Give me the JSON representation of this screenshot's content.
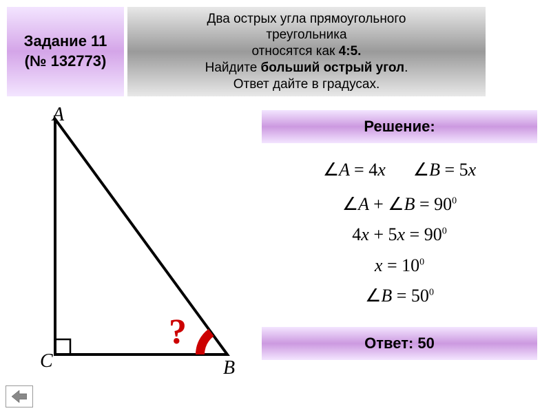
{
  "task_header": {
    "line1": "Задание 11",
    "line2": "(№ 132773)"
  },
  "problem": {
    "line1": "Два острых угла прямоугольного",
    "line2": "треугольника",
    "line3_before": "относятся как ",
    "line3_bold": "4:5.",
    "line4_before": "Найдите ",
    "line4_bold": "больший острый угол",
    "line4_after": ".",
    "line5": "Ответ дайте в градусах."
  },
  "solution_label": "Решение:",
  "equations": {
    "eq1a": "∠A = 4x",
    "eq1b": "∠B = 5x",
    "eq2": "∠A + ∠B = 90",
    "eq3": "4x + 5x = 90",
    "eq4": "x = 10",
    "eq5": "∠B = 50",
    "deg": "0"
  },
  "answer_label": "Ответ: 50",
  "triangle": {
    "vertices": {
      "A": "A",
      "B": "B",
      "C": "C"
    },
    "question": "?",
    "stroke": "#000000",
    "stroke_width": 4,
    "right_angle_size": 22,
    "arc_color": "#cc0000",
    "points": {
      "A": [
        60,
        18
      ],
      "C": [
        60,
        360
      ],
      "B": [
        310,
        360
      ]
    }
  },
  "colors": {
    "purple_grad_light": "#f3e5ff",
    "purple_grad_mid": "#d4a5e8",
    "gray_grad_light": "#e8e8e8",
    "gray_grad_mid": "#9a9a9a",
    "red": "#cc0000"
  }
}
